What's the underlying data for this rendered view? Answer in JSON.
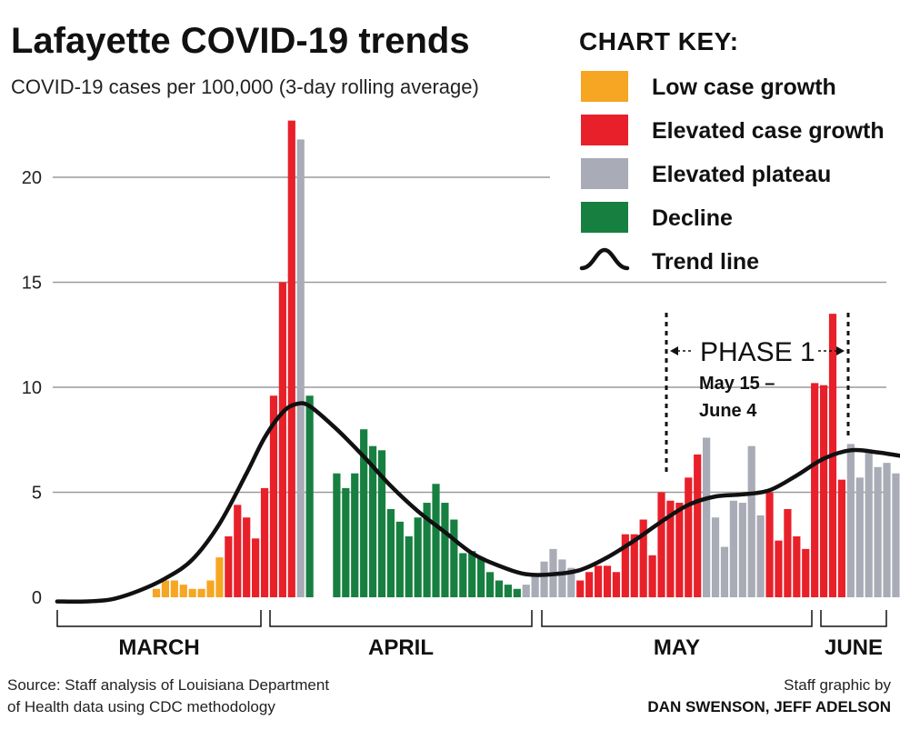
{
  "title": "Lafayette COVID-19 trends",
  "subtitle": "COVID-19 cases per 100,000 (3-day rolling average)",
  "legend": {
    "title": "CHART KEY:",
    "items": [
      {
        "label": "Low case growth",
        "color": "#f6a623",
        "kind": "swatch"
      },
      {
        "label": "Elevated case growth",
        "color": "#e8202a",
        "kind": "swatch"
      },
      {
        "label": "Elevated plateau",
        "color": "#a9abb6",
        "kind": "swatch"
      },
      {
        "label": "Decline",
        "color": "#178041",
        "kind": "swatch"
      },
      {
        "label": "Trend line",
        "color": "#111111",
        "kind": "line"
      }
    ]
  },
  "annotation": {
    "title": "PHASE 1",
    "line1": "May 15 –",
    "line2": "June 4",
    "start_day": 79,
    "end_day": 99
  },
  "months": [
    {
      "label": "MARCH",
      "start_day": 0,
      "end_day": 25
    },
    {
      "label": "APRIL",
      "start_day": 26,
      "end_day": 55
    },
    {
      "label": "MAY",
      "start_day": 56,
      "end_day": 86
    },
    {
      "label": "JUNE",
      "start_day": 87,
      "end_day": 94
    }
  ],
  "source": {
    "line1": "Source: Staff analysis of Louisiana Department",
    "line2": "of Health data using CDC methodology"
  },
  "credit": {
    "line1": "Staff graphic by",
    "line2": "DAN SWENSON, JEFF ADELSON"
  },
  "chart_data": {
    "type": "bar",
    "ylim": [
      0,
      23
    ],
    "yticks": [
      0,
      5,
      10,
      15,
      20
    ],
    "colors": {
      "low": "#f6a623",
      "elevated": "#e8202a",
      "plateau": "#a9abb6",
      "decline": "#178041"
    },
    "bars": [
      {
        "day": 11,
        "value": 0.4,
        "cat": "low"
      },
      {
        "day": 12,
        "value": 0.8,
        "cat": "low"
      },
      {
        "day": 13,
        "value": 0.8,
        "cat": "low"
      },
      {
        "day": 14,
        "value": 0.6,
        "cat": "low"
      },
      {
        "day": 15,
        "value": 0.4,
        "cat": "low"
      },
      {
        "day": 16,
        "value": 0.4,
        "cat": "low"
      },
      {
        "day": 17,
        "value": 0.8,
        "cat": "low"
      },
      {
        "day": 18,
        "value": 1.9,
        "cat": "low"
      },
      {
        "day": 19,
        "value": 2.9,
        "cat": "elevated"
      },
      {
        "day": 20,
        "value": 4.4,
        "cat": "elevated"
      },
      {
        "day": 21,
        "value": 3.8,
        "cat": "elevated"
      },
      {
        "day": 22,
        "value": 2.8,
        "cat": "elevated"
      },
      {
        "day": 23,
        "value": 5.2,
        "cat": "elevated"
      },
      {
        "day": 24,
        "value": 9.6,
        "cat": "elevated"
      },
      {
        "day": 25,
        "value": 15.0,
        "cat": "elevated"
      },
      {
        "day": 26,
        "value": 22.7,
        "cat": "elevated"
      },
      {
        "day": 27,
        "value": 21.8,
        "cat": "plateau"
      },
      {
        "day": 28,
        "value": 9.6,
        "cat": "decline"
      },
      {
        "day": 31,
        "value": 5.9,
        "cat": "decline"
      },
      {
        "day": 32,
        "value": 5.2,
        "cat": "decline"
      },
      {
        "day": 33,
        "value": 5.9,
        "cat": "decline"
      },
      {
        "day": 34,
        "value": 8.0,
        "cat": "decline"
      },
      {
        "day": 35,
        "value": 7.2,
        "cat": "decline"
      },
      {
        "day": 36,
        "value": 7.0,
        "cat": "decline"
      },
      {
        "day": 37,
        "value": 4.2,
        "cat": "decline"
      },
      {
        "day": 38,
        "value": 3.6,
        "cat": "decline"
      },
      {
        "day": 39,
        "value": 2.9,
        "cat": "decline"
      },
      {
        "day": 40,
        "value": 3.8,
        "cat": "decline"
      },
      {
        "day": 41,
        "value": 4.5,
        "cat": "decline"
      },
      {
        "day": 42,
        "value": 5.4,
        "cat": "decline"
      },
      {
        "day": 43,
        "value": 4.5,
        "cat": "decline"
      },
      {
        "day": 44,
        "value": 3.7,
        "cat": "decline"
      },
      {
        "day": 45,
        "value": 2.1,
        "cat": "decline"
      },
      {
        "day": 46,
        "value": 2.2,
        "cat": "decline"
      },
      {
        "day": 47,
        "value": 1.9,
        "cat": "decline"
      },
      {
        "day": 48,
        "value": 1.2,
        "cat": "decline"
      },
      {
        "day": 49,
        "value": 0.8,
        "cat": "decline"
      },
      {
        "day": 50,
        "value": 0.6,
        "cat": "decline"
      },
      {
        "day": 51,
        "value": 0.4,
        "cat": "decline"
      },
      {
        "day": 52,
        "value": 0.6,
        "cat": "plateau"
      },
      {
        "day": 53,
        "value": 1.1,
        "cat": "plateau"
      },
      {
        "day": 54,
        "value": 1.7,
        "cat": "plateau"
      },
      {
        "day": 55,
        "value": 2.3,
        "cat": "plateau"
      },
      {
        "day": 56,
        "value": 1.8,
        "cat": "plateau"
      },
      {
        "day": 57,
        "value": 1.4,
        "cat": "plateau"
      },
      {
        "day": 58,
        "value": 0.8,
        "cat": "elevated"
      },
      {
        "day": 59,
        "value": 1.2,
        "cat": "elevated"
      },
      {
        "day": 60,
        "value": 1.5,
        "cat": "elevated"
      },
      {
        "day": 61,
        "value": 1.5,
        "cat": "elevated"
      },
      {
        "day": 62,
        "value": 1.2,
        "cat": "elevated"
      },
      {
        "day": 63,
        "value": 3.0,
        "cat": "elevated"
      },
      {
        "day": 64,
        "value": 3.0,
        "cat": "elevated"
      },
      {
        "day": 65,
        "value": 3.7,
        "cat": "elevated"
      },
      {
        "day": 66,
        "value": 2.0,
        "cat": "elevated"
      },
      {
        "day": 67,
        "value": 5.0,
        "cat": "elevated"
      },
      {
        "day": 68,
        "value": 4.6,
        "cat": "elevated"
      },
      {
        "day": 69,
        "value": 4.5,
        "cat": "elevated"
      },
      {
        "day": 70,
        "value": 5.7,
        "cat": "elevated"
      },
      {
        "day": 71,
        "value": 6.8,
        "cat": "elevated"
      },
      {
        "day": 72,
        "value": 7.6,
        "cat": "plateau"
      },
      {
        "day": 73,
        "value": 3.8,
        "cat": "plateau"
      },
      {
        "day": 74,
        "value": 2.4,
        "cat": "plateau"
      },
      {
        "day": 75,
        "value": 4.6,
        "cat": "plateau"
      },
      {
        "day": 76,
        "value": 4.5,
        "cat": "plateau"
      },
      {
        "day": 77,
        "value": 7.2,
        "cat": "plateau"
      },
      {
        "day": 78,
        "value": 3.9,
        "cat": "plateau"
      },
      {
        "day": 79,
        "value": 5.0,
        "cat": "elevated"
      },
      {
        "day": 80,
        "value": 2.7,
        "cat": "elevated"
      },
      {
        "day": 81,
        "value": 4.2,
        "cat": "elevated"
      },
      {
        "day": 82,
        "value": 2.9,
        "cat": "elevated"
      },
      {
        "day": 83,
        "value": 2.3,
        "cat": "elevated"
      },
      {
        "day": 84,
        "value": 10.2,
        "cat": "elevated"
      },
      {
        "day": 85,
        "value": 10.1,
        "cat": "elevated"
      },
      {
        "day": 86,
        "value": 13.5,
        "cat": "elevated"
      },
      {
        "day": 87,
        "value": 5.6,
        "cat": "elevated"
      },
      {
        "day": 88,
        "value": 7.3,
        "cat": "plateau"
      },
      {
        "day": 89,
        "value": 5.7,
        "cat": "plateau"
      },
      {
        "day": 90,
        "value": 7.0,
        "cat": "plateau"
      },
      {
        "day": 91,
        "value": 6.2,
        "cat": "plateau"
      },
      {
        "day": 92,
        "value": 6.4,
        "cat": "plateau"
      },
      {
        "day": 93,
        "value": 5.9,
        "cat": "plateau"
      }
    ],
    "trend": [
      {
        "day": 0,
        "value": -0.2
      },
      {
        "day": 3,
        "value": -0.2
      },
      {
        "day": 6,
        "value": -0.1
      },
      {
        "day": 9,
        "value": 0.3
      },
      {
        "day": 12,
        "value": 0.9
      },
      {
        "day": 15,
        "value": 1.8
      },
      {
        "day": 18,
        "value": 3.5
      },
      {
        "day": 21,
        "value": 5.9
      },
      {
        "day": 23,
        "value": 7.6
      },
      {
        "day": 25,
        "value": 8.8
      },
      {
        "day": 26.5,
        "value": 9.2
      },
      {
        "day": 28,
        "value": 9.1
      },
      {
        "day": 31,
        "value": 8.0
      },
      {
        "day": 34,
        "value": 6.7
      },
      {
        "day": 37,
        "value": 5.3
      },
      {
        "day": 40,
        "value": 4.1
      },
      {
        "day": 43,
        "value": 3.1
      },
      {
        "day": 46,
        "value": 2.1
      },
      {
        "day": 49,
        "value": 1.5
      },
      {
        "day": 52,
        "value": 1.1
      },
      {
        "day": 55,
        "value": 1.1
      },
      {
        "day": 58,
        "value": 1.3
      },
      {
        "day": 61,
        "value": 1.9
      },
      {
        "day": 64,
        "value": 2.7
      },
      {
        "day": 67,
        "value": 3.6
      },
      {
        "day": 70,
        "value": 4.4
      },
      {
        "day": 73,
        "value": 4.8
      },
      {
        "day": 76,
        "value": 4.9
      },
      {
        "day": 79,
        "value": 5.1
      },
      {
        "day": 82,
        "value": 5.8
      },
      {
        "day": 85,
        "value": 6.6
      },
      {
        "day": 88,
        "value": 7.0
      },
      {
        "day": 91,
        "value": 6.9
      },
      {
        "day": 94,
        "value": 6.7
      }
    ]
  }
}
